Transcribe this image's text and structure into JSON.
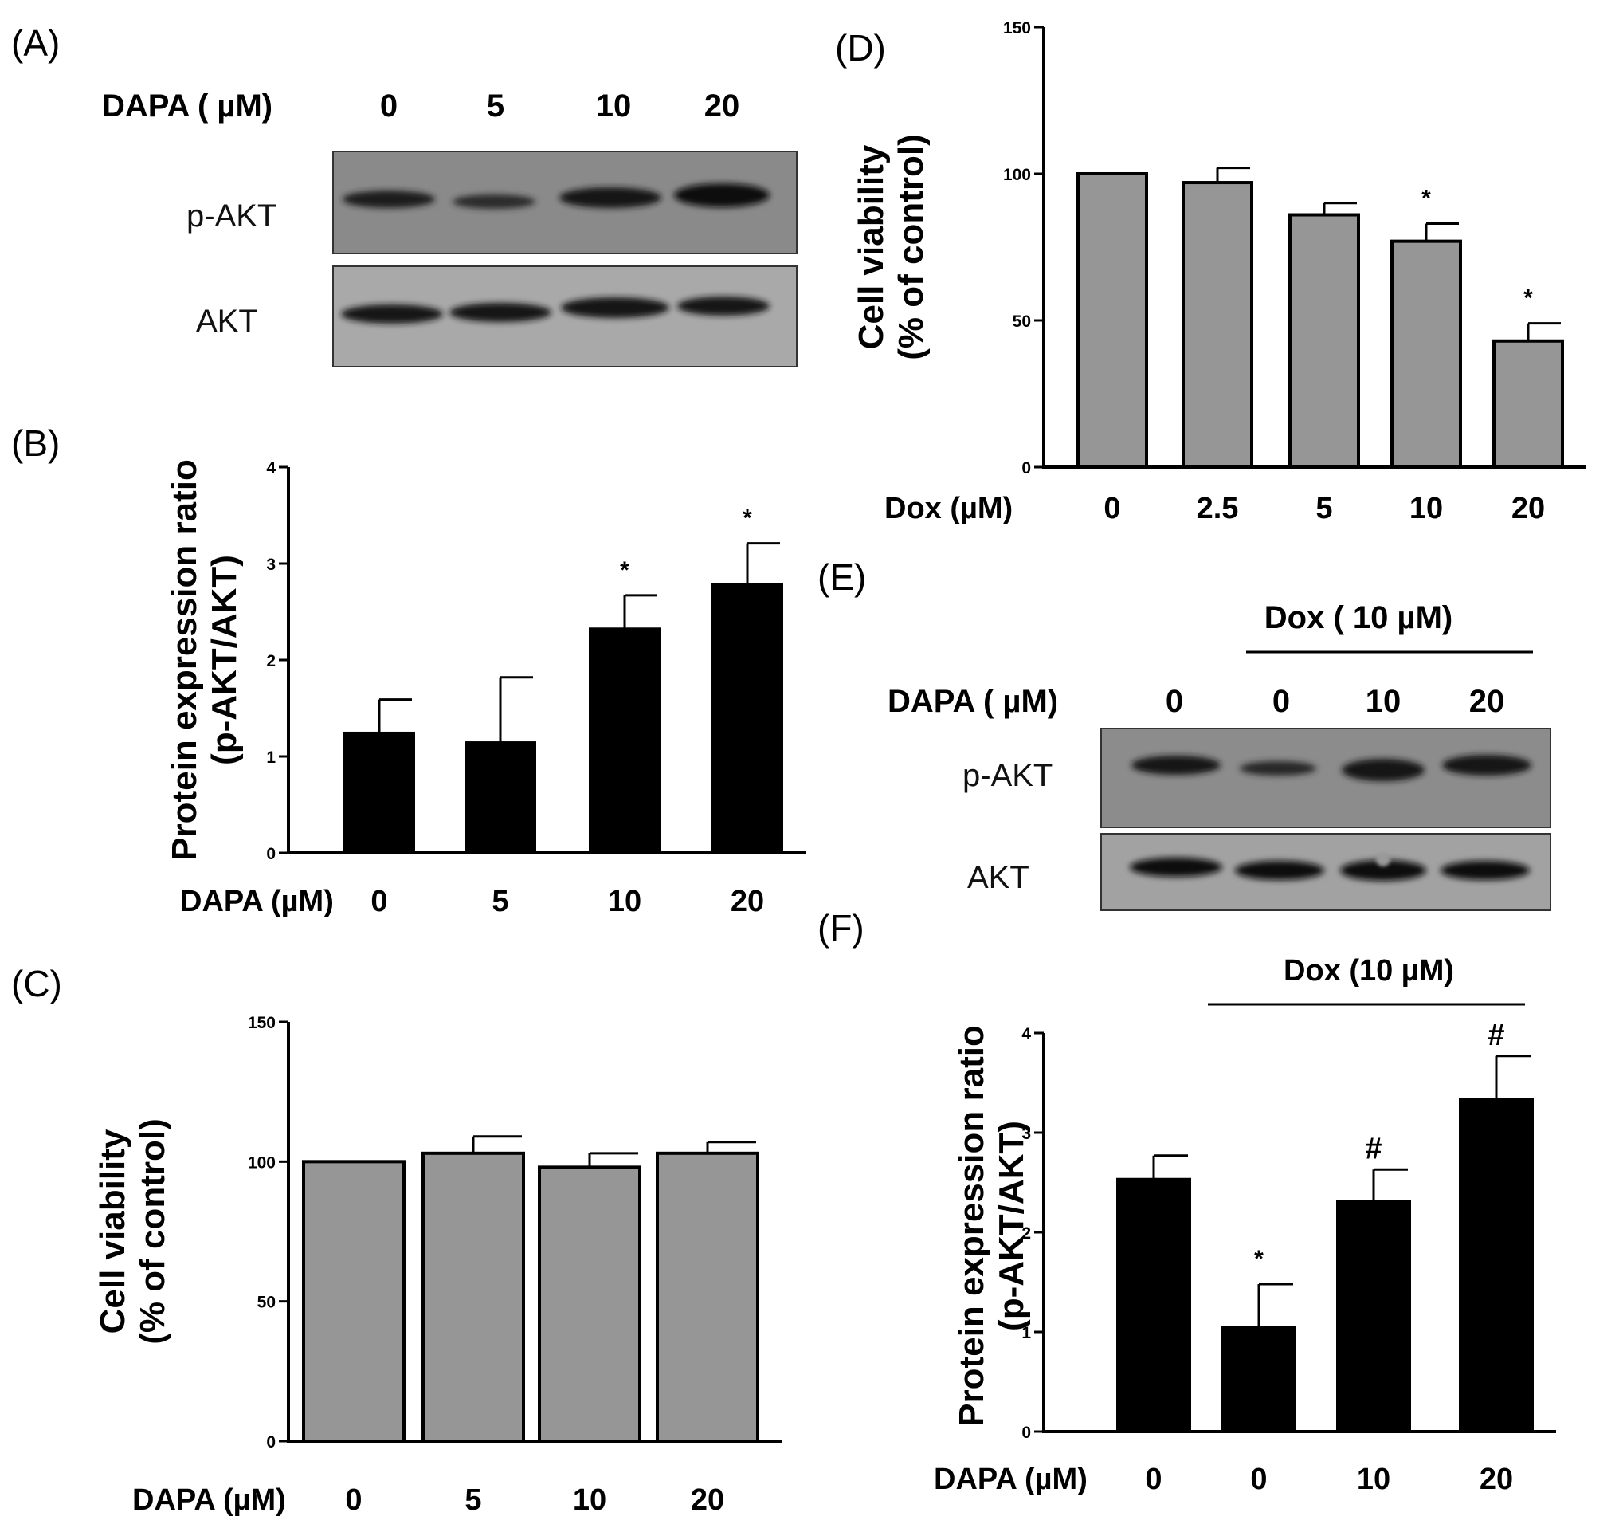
{
  "panels": {
    "A": {
      "letter": "(A)",
      "dose_label": "DAPA ( µM)",
      "doses": [
        "0",
        "5",
        "10",
        "20"
      ],
      "blot_labels": [
        "p-AKT",
        "AKT"
      ]
    },
    "E": {
      "letter": "(E)",
      "dox_label": "Dox ( 10 µM)",
      "dose_label": "DAPA ( µM)",
      "doses": [
        "0",
        "0",
        "10",
        "20"
      ],
      "blot_labels": [
        "p-AKT",
        "AKT"
      ]
    }
  },
  "chart_data": [
    {
      "id": "B",
      "letter": "(B)",
      "type": "bar",
      "ylabel_line1": "Protein expression ratio",
      "ylabel_line2": "(p-AKT/AKT)",
      "xlabel": "DAPA (µM)",
      "categories": [
        "0",
        "5",
        "10",
        "20"
      ],
      "values": [
        1.24,
        1.14,
        2.32,
        2.78
      ],
      "errors": [
        0.35,
        0.68,
        0.35,
        0.43
      ],
      "annotations": [
        "",
        "",
        "*",
        "*"
      ],
      "ylim": [
        0,
        4
      ],
      "yticks": [
        "0",
        "1",
        "2",
        "3",
        "4"
      ],
      "bar_color": "#000000"
    },
    {
      "id": "C",
      "letter": "(C)",
      "type": "bar",
      "ylabel_line1": "Cell viability",
      "ylabel_line2": "(% of control)",
      "xlabel": "DAPA (µM)",
      "categories": [
        "0",
        "5",
        "10",
        "20"
      ],
      "values": [
        100,
        103,
        98,
        103
      ],
      "errors": [
        0,
        6,
        5,
        4
      ],
      "annotations": [
        "",
        "",
        "",
        ""
      ],
      "ylim": [
        0,
        150
      ],
      "yticks": [
        "0",
        "50",
        "100",
        "150"
      ],
      "bar_color": "#969696"
    },
    {
      "id": "D",
      "letter": "(D)",
      "type": "bar",
      "ylabel_line1": "Cell viability",
      "ylabel_line2": "(% of control)",
      "xlabel": "Dox (µM)",
      "categories": [
        "0",
        "2.5",
        "5",
        "10",
        "20"
      ],
      "values": [
        100,
        97,
        86,
        77,
        43
      ],
      "errors": [
        0,
        5,
        4,
        6,
        6
      ],
      "annotations": [
        "",
        "",
        "",
        "*",
        "*"
      ],
      "ylim": [
        0,
        150
      ],
      "yticks": [
        "0",
        "50",
        "100",
        "150"
      ],
      "bar_color": "#969696"
    },
    {
      "id": "F",
      "letter": "(F)",
      "type": "bar",
      "ylabel_line1": "Protein expression ratio",
      "ylabel_line2": "(p-AKT/AKT)",
      "xlabel": "DAPA (µM)",
      "group_label": "Dox (10 µM)",
      "categories": [
        "0",
        "0",
        "10",
        "20"
      ],
      "values": [
        2.53,
        1.04,
        2.31,
        3.33
      ],
      "errors": [
        0.24,
        0.44,
        0.32,
        0.44
      ],
      "annotations": [
        "",
        "*",
        "#",
        "#"
      ],
      "ylim": [
        0,
        4
      ],
      "yticks": [
        "0",
        "1",
        "2",
        "3",
        "4"
      ],
      "bar_color": "#000000"
    }
  ]
}
